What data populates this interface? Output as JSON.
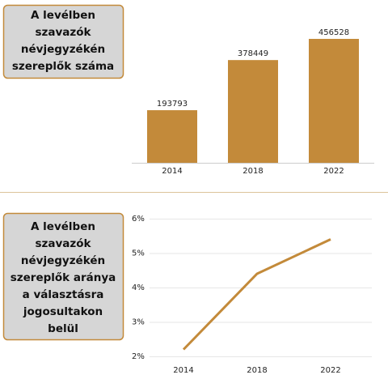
{
  "charts": [
    {
      "chart_data": {
        "type": "bar",
        "title": [
          "A levélben",
          "szavazók",
          "névjegyzékén",
          "szereplők száma"
        ],
        "categories": [
          "2014",
          "2018",
          "2022"
        ],
        "values": [
          193793,
          378449,
          456528
        ],
        "color": "#c38a3a"
      }
    },
    {
      "chart_data": {
        "type": "line",
        "title": [
          "A levélben",
          "szavazók",
          "névjegyzékén",
          "szereplők aránya",
          "a választásra",
          "jogosultakon",
          "belül"
        ],
        "categories": [
          "2014",
          "2018",
          "2022"
        ],
        "values": [
          2.2,
          4.4,
          5.4
        ],
        "color": "#c38a3a",
        "ylim": [
          2,
          6
        ],
        "yticks": [
          {
            "value": 2,
            "label": "2%"
          },
          {
            "value": 3,
            "label": "3%"
          },
          {
            "value": 4,
            "label": "4%"
          },
          {
            "value": 5,
            "label": "5%"
          },
          {
            "value": 6,
            "label": "6%"
          }
        ],
        "grid": true
      }
    }
  ]
}
